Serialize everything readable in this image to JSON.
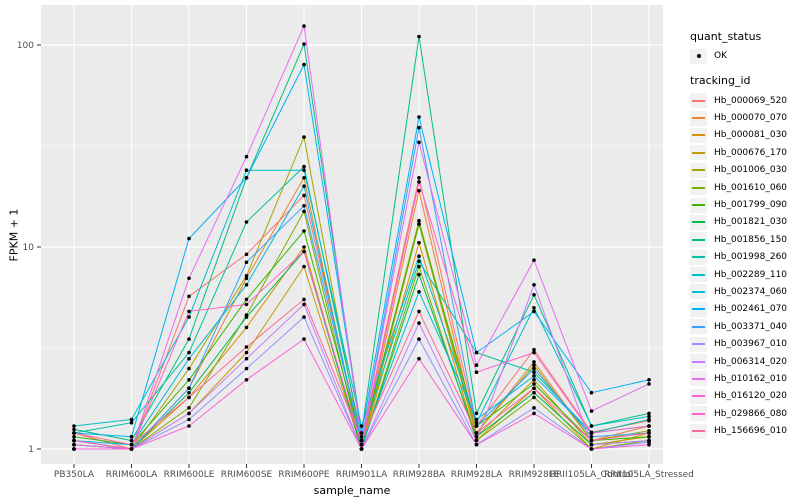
{
  "figure": {
    "xlabel": "sample_name",
    "ylabel": "FPKM + 1"
  },
  "legend": {
    "quant_status_title": "quant_status",
    "quant_status_items": [
      {
        "label": "OK",
        "shape": "filled-point"
      }
    ],
    "tracking_id_title": "tracking_id"
  },
  "chart_data": {
    "type": "line",
    "title": "",
    "xlabel": "sample_name",
    "ylabel": "FPKM + 1",
    "yscale": "log10",
    "ylim": [
      1,
      130
    ],
    "yticks": [
      1,
      10,
      100
    ],
    "ytick_labels": [
      "1",
      "10",
      "100"
    ],
    "minor_yticks": [
      3.1623,
      31.623
    ],
    "grid": true,
    "legend_position": "right",
    "panel_bg": "#EBEBEB",
    "grid_color": "#FFFFFF",
    "tick_text_color": "#4D4D4D",
    "point_color": "#000000",
    "categories": [
      "PB350LA",
      "RRIM600LA",
      "RRIM600LE",
      "RRIM600SE",
      "RRIM600PE",
      "RRIM901LA",
      "RRIM928BA",
      "RRIM928LA",
      "RRIM928LE",
      "RRII105LA_Control",
      "RRII105LA_Stressed"
    ],
    "series": [
      {
        "name": "Hb_000069_520",
        "color": "#F8766D",
        "values": [
          1.2,
          1.0,
          5.7,
          9.2,
          18,
          1.1,
          22,
          1.3,
          3.1,
          1.21,
          1.38
        ]
      },
      {
        "name": "Hb_000070_070",
        "color": "#EA8331",
        "values": [
          1.1,
          1.0,
          2.0,
          7.0,
          22,
          1.0,
          19,
          1.2,
          2.7,
          1.1,
          1.3
        ]
      },
      {
        "name": "Hb_000081_030",
        "color": "#D89000",
        "values": [
          1.0,
          1.0,
          1.8,
          4.0,
          10,
          1.0,
          10.5,
          1.1,
          2.0,
          1.0,
          1.2
        ]
      },
      {
        "name": "Hb_000676_170",
        "color": "#C09B00",
        "values": [
          1.05,
          1.0,
          1.5,
          3.0,
          8.0,
          1.0,
          13,
          1.15,
          2.2,
          1.05,
          1.15
        ]
      },
      {
        "name": "Hb_001006_030",
        "color": "#A3A500",
        "values": [
          1.1,
          1.0,
          2.5,
          7.2,
          35,
          1.05,
          13.5,
          1.2,
          2.6,
          1.1,
          1.23
        ]
      },
      {
        "name": "Hb_001610_060",
        "color": "#7CAE00",
        "values": [
          1.0,
          1.0,
          1.6,
          4.6,
          15,
          1.0,
          8.0,
          1.1,
          1.8,
          1.0,
          1.1
        ]
      },
      {
        "name": "Hb_001799_090",
        "color": "#39B600",
        "values": [
          1.15,
          1.05,
          2.2,
          5.5,
          12,
          1.1,
          13,
          1.3,
          2.1,
          1.1,
          1.15
        ]
      },
      {
        "name": "Hb_001821_030",
        "color": "#00BB4E",
        "values": [
          1.05,
          1.0,
          1.9,
          4.5,
          9.5,
          1.0,
          7.3,
          1.15,
          1.9,
          1.05,
          1.1
        ]
      },
      {
        "name": "Hb_001856_150",
        "color": "#00BF7D",
        "values": [
          1.25,
          1.1,
          3.5,
          22,
          101,
          1.2,
          110,
          1.5,
          5.8,
          1.3,
          1.5
        ]
      },
      {
        "name": "Hb_001998_260",
        "color": "#00C1A3",
        "values": [
          1.2,
          1.35,
          3.0,
          13.3,
          25,
          1.15,
          8.5,
          3.0,
          2.4,
          1.2,
          1.4
        ]
      },
      {
        "name": "Hb_002289_110",
        "color": "#00BFC4",
        "values": [
          1.3,
          1.4,
          4.5,
          24,
          24,
          1.3,
          9.0,
          1.35,
          5.0,
          1.3,
          1.45
        ]
      },
      {
        "name": "Hb_002374_060",
        "color": "#00BBDA",
        "values": [
          1.1,
          1.05,
          2.8,
          6.5,
          20,
          1.05,
          6.0,
          1.4,
          2.3,
          1.2,
          1.3
        ]
      },
      {
        "name": "Hb_002461_070",
        "color": "#00B0F6",
        "values": [
          1.2,
          1.15,
          11,
          22,
          80,
          1.2,
          44,
          3.0,
          4.8,
          1.9,
          2.2
        ]
      },
      {
        "name": "Hb_003371_040",
        "color": "#35A2FF",
        "values": [
          1.1,
          1.0,
          2.0,
          8.4,
          16,
          1.1,
          39,
          1.3,
          2.5,
          1.15,
          1.2
        ]
      },
      {
        "name": "Hb_003967_010",
        "color": "#9590FF",
        "values": [
          1.0,
          1.0,
          1.4,
          2.5,
          4.5,
          1.0,
          3.5,
          1.05,
          1.6,
          1.0,
          1.08
        ]
      },
      {
        "name": "Hb_006314_020",
        "color": "#C77CFF",
        "values": [
          1.0,
          1.0,
          1.5,
          2.8,
          5.2,
          1.0,
          4.2,
          1.1,
          6.5,
          1.05,
          1.1
        ]
      },
      {
        "name": "Hb_010162_010",
        "color": "#E76BF3",
        "values": [
          1.05,
          1.0,
          7.0,
          28,
          124,
          1.1,
          33,
          2.6,
          8.6,
          1.54,
          2.1
        ]
      },
      {
        "name": "Hb_016120_020",
        "color": "#FA62DB",
        "values": [
          1.0,
          1.0,
          1.3,
          2.2,
          3.5,
          1.0,
          2.8,
          1.05,
          1.5,
          1.0,
          1.05
        ]
      },
      {
        "name": "Hb_029866_080",
        "color": "#FF61C9",
        "values": [
          1.1,
          1.0,
          4.8,
          5.2,
          9.5,
          1.05,
          21,
          2.4,
          3.0,
          1.2,
          1.3
        ]
      },
      {
        "name": "Hb_156696_010",
        "color": "#FF6A98",
        "values": [
          1.2,
          1.05,
          1.8,
          3.2,
          5.5,
          1.1,
          4.8,
          1.2,
          2.0,
          1.1,
          1.2
        ]
      }
    ]
  }
}
